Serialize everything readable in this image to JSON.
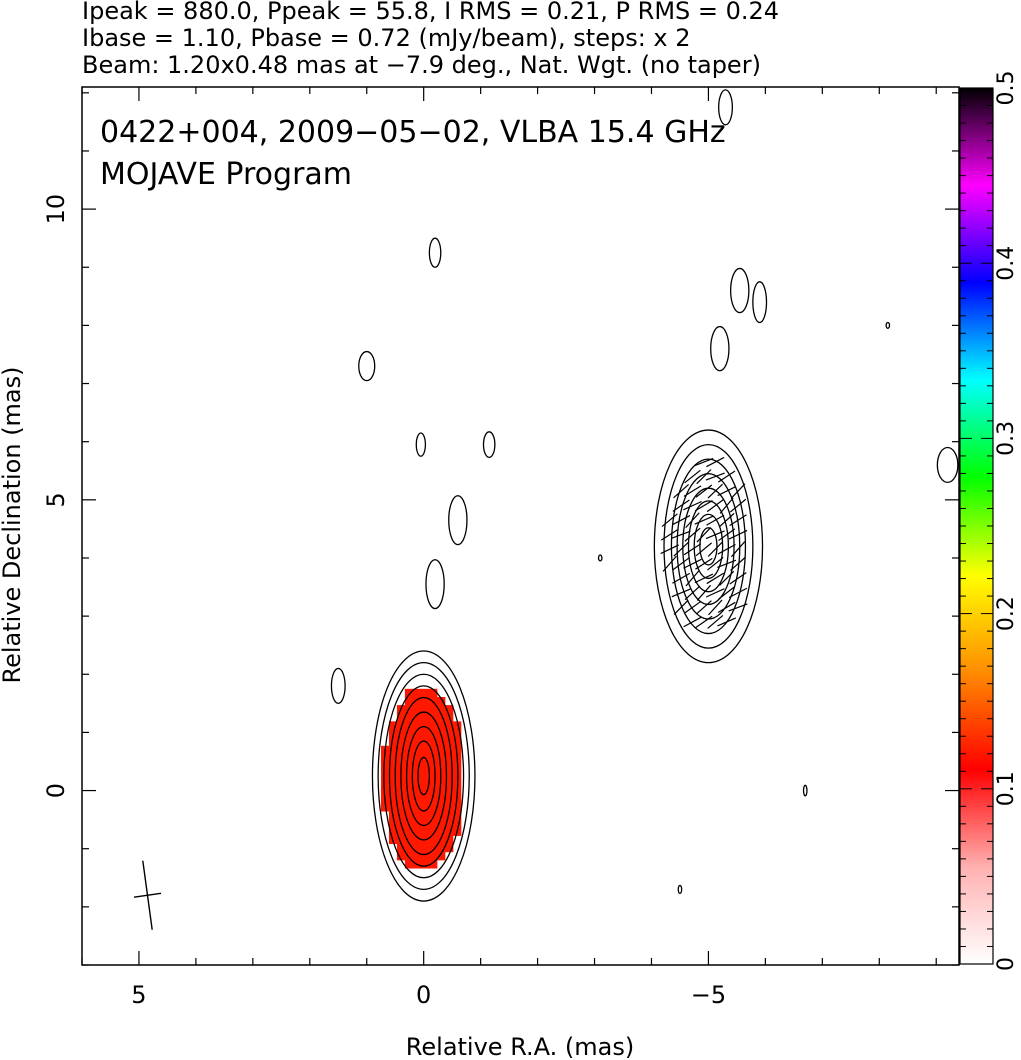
{
  "header": {
    "line1": "Ipeak = 880.0, Ppeak = 55.8, I RMS = 0.21, P RMS = 0.24",
    "line2": "Ibase = 1.10, Pbase = 0.72 (mJy/beam), steps: x 2",
    "line3": "Beam: 1.20x0.48 mas at −7.9 deg., Nat. Wgt. (no taper)"
  },
  "chart_data": {
    "type": "contour",
    "title_line1": "0422+004, 2009−05−02, VLBA 15.4 GHz",
    "title_line2": "MOJAVE Program",
    "xlabel": "Relative R.A. (mas)",
    "ylabel": "Relative Declination (mas)",
    "xlim": [
      6.0,
      -9.4
    ],
    "ylim": [
      -3.0,
      12.1
    ],
    "x_axis_reversed": true,
    "xticks": [
      5,
      0,
      -5
    ],
    "xtick_labels": [
      "5",
      "0",
      "−5"
    ],
    "yticks": [
      0,
      5,
      10
    ],
    "ytick_labels": [
      "0",
      "5",
      "10"
    ],
    "colorbar": {
      "range": [
        0,
        0.5
      ],
      "ticks": [
        0,
        0.1,
        0.2,
        0.3,
        0.4,
        0.5
      ],
      "tick_labels": [
        "0",
        "0.1",
        "0.2",
        "0.3",
        "0.4",
        "0.5"
      ],
      "colors": [
        "#ffffff",
        "#ffb0b0",
        "#ff0000",
        "#ff8c00",
        "#ffff00",
        "#00ff00",
        "#00ffff",
        "#0000ff",
        "#ff00ff",
        "#000000"
      ]
    },
    "contour_base_mJy_per_beam": 1.1,
    "contour_step_factor": 2,
    "components": [
      {
        "name": "core",
        "ra": 0.0,
        "dec": 0.25,
        "contours": [
          {
            "a": 0.9,
            "b": 2.15
          },
          {
            "a": 0.8,
            "b": 1.95
          },
          {
            "a": 0.7,
            "b": 1.75
          },
          {
            "a": 0.6,
            "b": 1.55
          },
          {
            "a": 0.5,
            "b": 1.35
          },
          {
            "a": 0.4,
            "b": 1.1
          },
          {
            "a": 0.3,
            "b": 0.85
          },
          {
            "a": 0.2,
            "b": 0.6
          },
          {
            "a": 0.1,
            "b": 0.32
          }
        ]
      },
      {
        "name": "jet",
        "ra": -5.0,
        "dec": 4.2,
        "contours": [
          {
            "a": 0.95,
            "b": 2.0
          },
          {
            "a": 0.78,
            "b": 1.75
          },
          {
            "a": 0.65,
            "b": 1.5
          },
          {
            "a": 0.55,
            "b": 1.25
          },
          {
            "a": 0.45,
            "b": 1.0
          },
          {
            "a": 0.35,
            "b": 0.78
          },
          {
            "a": 0.25,
            "b": 0.55
          },
          {
            "a": 0.15,
            "b": 0.32
          }
        ]
      }
    ],
    "polarized_region": {
      "ra": 0.0,
      "dec": 0.2,
      "a": 0.72,
      "b": 1.6,
      "color": "#ff1800"
    },
    "evpa_ticks": {
      "center_ra": -5.0,
      "center_dec": 4.2,
      "a": 0.72,
      "b": 1.55,
      "length_mas": 0.35
    },
    "noise_islands": [
      {
        "ra": -0.2,
        "dec": 9.25,
        "a": 0.1,
        "b": 0.25
      },
      {
        "ra": 1.0,
        "dec": 7.3,
        "a": 0.14,
        "b": 0.25
      },
      {
        "ra": 0.05,
        "dec": 5.95,
        "a": 0.08,
        "b": 0.2
      },
      {
        "ra": -1.15,
        "dec": 5.95,
        "a": 0.1,
        "b": 0.22
      },
      {
        "ra": -0.6,
        "dec": 4.65,
        "a": 0.16,
        "b": 0.42
      },
      {
        "ra": -0.2,
        "dec": 3.55,
        "a": 0.16,
        "b": 0.42
      },
      {
        "ra": 1.5,
        "dec": 1.8,
        "a": 0.12,
        "b": 0.3
      },
      {
        "ra": -5.2,
        "dec": 7.6,
        "a": 0.16,
        "b": 0.38
      },
      {
        "ra": -5.55,
        "dec": 8.6,
        "a": 0.16,
        "b": 0.38
      },
      {
        "ra": -5.9,
        "dec": 8.4,
        "a": 0.12,
        "b": 0.35
      },
      {
        "ra": -5.3,
        "dec": 11.75,
        "a": 0.12,
        "b": 0.3
      },
      {
        "ra": -9.2,
        "dec": 5.6,
        "a": 0.18,
        "b": 0.3
      },
      {
        "ra": -6.7,
        "dec": 0.0,
        "a": 0.03,
        "b": 0.09
      },
      {
        "ra": -8.15,
        "dec": 8.0,
        "a": 0.03,
        "b": 0.05
      },
      {
        "ra": -3.1,
        "dec": 4.0,
        "a": 0.03,
        "b": 0.05
      },
      {
        "ra": -4.5,
        "dec": -1.7,
        "a": 0.03,
        "b": 0.07
      }
    ],
    "beam": {
      "ra": 4.85,
      "dec": -1.8,
      "major_mas": 1.2,
      "minor_mas": 0.48,
      "pa_deg": -7.9
    }
  }
}
